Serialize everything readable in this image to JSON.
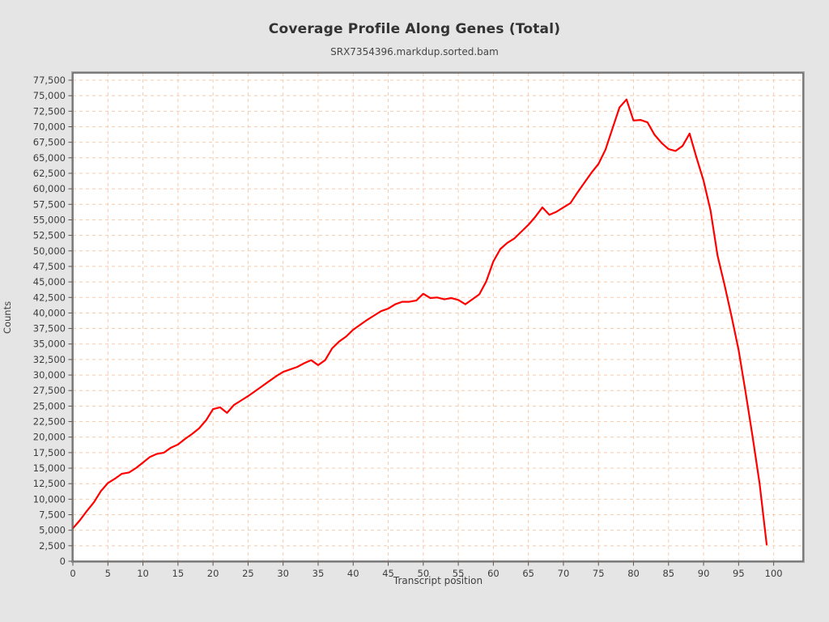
{
  "header": {
    "title": "Coverage Profile Along Genes (Total)",
    "subtitle": "SRX7354396.markdup.sorted.bam"
  },
  "chart_data": {
    "type": "line",
    "title": "Coverage Profile Along Genes (Total)",
    "subtitle": "SRX7354396.markdup.sorted.bam",
    "xlabel": "Transcript position",
    "ylabel": "Counts",
    "xlim": [
      0,
      104.2
    ],
    "ylim": [
      0,
      77500
    ],
    "grid": {
      "show": true,
      "color": "#f6cbae",
      "style": "dashed"
    },
    "legend_position": "none",
    "x_ticks": [
      0,
      5,
      10,
      15,
      20,
      25,
      30,
      35,
      40,
      45,
      50,
      55,
      60,
      65,
      70,
      75,
      80,
      85,
      90,
      95,
      100
    ],
    "y_ticks": [
      0,
      2500,
      5000,
      7500,
      10000,
      12500,
      15000,
      17500,
      20000,
      22500,
      25000,
      27500,
      30000,
      32500,
      35000,
      37500,
      40000,
      42500,
      45000,
      47500,
      50000,
      52500,
      55000,
      57500,
      60000,
      62500,
      65000,
      67500,
      70000,
      72500,
      75000,
      77500
    ],
    "series": [
      {
        "name": "SRX7354396.markdup.sorted.bam",
        "color": "#ff0000",
        "x": [
          0,
          1,
          2,
          3,
          4,
          5,
          6,
          7,
          8,
          9,
          10,
          11,
          12,
          13,
          14,
          15,
          16,
          17,
          18,
          19,
          20,
          21,
          22,
          23,
          24,
          25,
          26,
          27,
          28,
          29,
          30,
          31,
          32,
          33,
          34,
          35,
          36,
          37,
          38,
          39,
          40,
          41,
          42,
          43,
          44,
          45,
          46,
          47,
          48,
          49,
          50,
          51,
          52,
          53,
          54,
          55,
          56,
          57,
          58,
          59,
          60,
          61,
          62,
          63,
          64,
          65,
          66,
          67,
          68,
          69,
          70,
          71,
          72,
          73,
          74,
          75,
          76,
          77,
          78,
          79,
          80,
          81,
          82,
          83,
          84,
          85,
          86,
          87,
          88,
          89,
          90,
          91,
          92,
          93,
          94,
          95,
          96,
          97,
          98,
          99
        ],
        "values": [
          5300,
          6600,
          8100,
          9500,
          11300,
          12600,
          13300,
          14100,
          14300,
          15000,
          15900,
          16800,
          17300,
          17500,
          18300,
          18800,
          19700,
          20500,
          21400,
          22700,
          24500,
          24800,
          23900,
          25200,
          25900,
          26600,
          27400,
          28200,
          29000,
          29800,
          30500,
          30900,
          31300,
          31900,
          32400,
          31600,
          32400,
          34300,
          35400,
          36200,
          37300,
          38100,
          38900,
          39600,
          40300,
          40700,
          41400,
          41800,
          41800,
          42000,
          43100,
          42400,
          42500,
          42200,
          42400,
          42100,
          41400,
          42200,
          43000,
          45100,
          48300,
          50300,
          51300,
          52000,
          53100,
          54200,
          55500,
          57000,
          55800,
          56300,
          57000,
          57700,
          59400,
          61000,
          62600,
          64000,
          66300,
          69700,
          73100,
          74400,
          71000,
          71100,
          70700,
          68700,
          67400,
          66400,
          66100,
          66900,
          68900,
          65000,
          61300,
          56500,
          49200,
          44500,
          39400,
          34000,
          27200,
          20000,
          12500,
          2700
        ]
      }
    ]
  },
  "style": {
    "page_bg": "#e5e5e5",
    "plot_bg": "#ffffff",
    "grid_color": "#f6cbae",
    "line_color": "#ff0000",
    "border_color": "#606060",
    "border_outer_color": "#a6a6a6",
    "tick_color": "#545454",
    "tick_label_color": "#3d3d3d"
  }
}
